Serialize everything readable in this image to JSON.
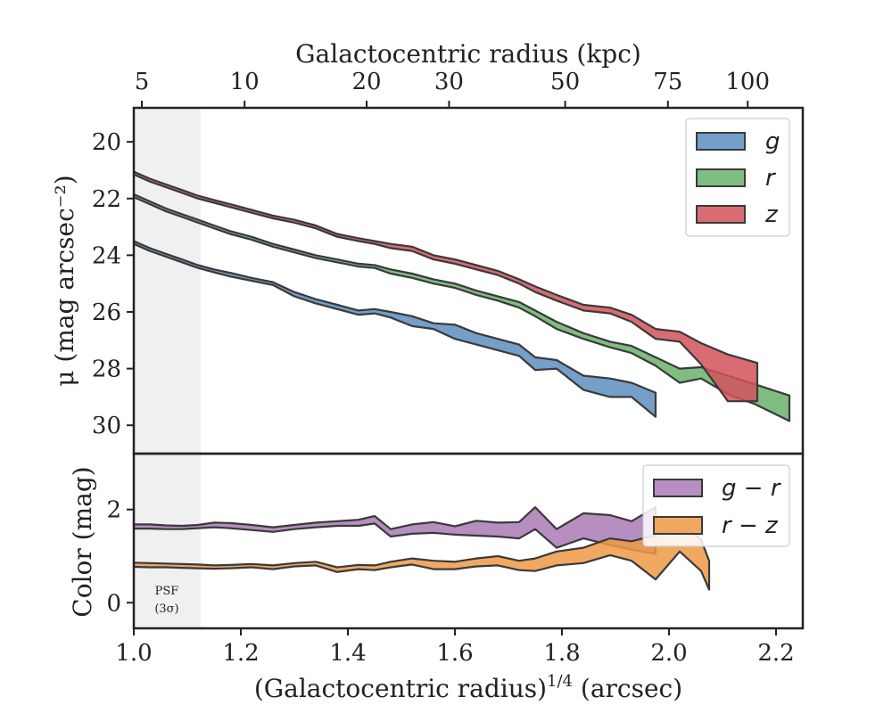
{
  "chart_data": [
    {
      "type": "area",
      "panel": "surface-brightness",
      "ylabel": "μ (mag arcsec⁻²)",
      "top_xlabel": "Galactocentric radius (kpc)",
      "xlim": [
        1.0,
        2.25
      ],
      "ylim": [
        31.0,
        18.8
      ],
      "y_inverted": true,
      "yticks": [
        20,
        22,
        24,
        26,
        28,
        30
      ],
      "top_ticks": [
        {
          "label": "5",
          "x": 1.015
        },
        {
          "label": "10",
          "x": 1.207
        },
        {
          "label": "20",
          "x": 1.435
        },
        {
          "label": "30",
          "x": 1.589
        },
        {
          "label": "50",
          "x": 1.806
        },
        {
          "label": "75",
          "x": 1.998
        },
        {
          "label": "100",
          "x": 2.147
        }
      ],
      "legend_position": "top-right",
      "series": [
        {
          "name": "g",
          "color": "#5b8ec0",
          "x": [
            1.0,
            1.03,
            1.06,
            1.09,
            1.12,
            1.15,
            1.18,
            1.22,
            1.26,
            1.3,
            1.34,
            1.38,
            1.42,
            1.45,
            1.48,
            1.52,
            1.56,
            1.6,
            1.64,
            1.68,
            1.72,
            1.75,
            1.79,
            1.84,
            1.89,
            1.93,
            1.975
          ],
          "top": [
            23.5,
            23.75,
            23.95,
            24.15,
            24.35,
            24.5,
            24.62,
            24.8,
            24.95,
            25.3,
            25.55,
            25.75,
            25.95,
            25.9,
            26.0,
            26.15,
            26.4,
            26.45,
            26.75,
            26.95,
            27.15,
            27.6,
            27.7,
            28.25,
            28.35,
            28.5,
            28.85
          ],
          "bottom": [
            23.6,
            23.85,
            24.05,
            24.25,
            24.45,
            24.6,
            24.75,
            24.9,
            25.05,
            25.45,
            25.7,
            25.9,
            26.1,
            26.05,
            26.2,
            26.5,
            26.6,
            26.95,
            27.15,
            27.35,
            27.55,
            28.05,
            28.0,
            28.75,
            29.0,
            29.0,
            29.7
          ]
        },
        {
          "name": "r",
          "color": "#6ab26a",
          "x": [
            1.0,
            1.03,
            1.06,
            1.09,
            1.12,
            1.15,
            1.18,
            1.22,
            1.26,
            1.3,
            1.34,
            1.38,
            1.42,
            1.45,
            1.48,
            1.52,
            1.56,
            1.6,
            1.64,
            1.68,
            1.72,
            1.75,
            1.79,
            1.84,
            1.89,
            1.93,
            1.975,
            2.02,
            2.06,
            2.11,
            2.16,
            2.225
          ],
          "top": [
            21.85,
            22.1,
            22.35,
            22.55,
            22.75,
            22.95,
            23.15,
            23.35,
            23.6,
            23.8,
            24.0,
            24.15,
            24.3,
            24.35,
            24.5,
            24.65,
            24.85,
            25.0,
            25.25,
            25.45,
            25.65,
            25.95,
            26.35,
            26.75,
            27.05,
            27.2,
            27.6,
            28.0,
            27.95,
            28.25,
            28.55,
            28.95
          ],
          "bottom": [
            21.95,
            22.2,
            22.45,
            22.65,
            22.85,
            23.05,
            23.25,
            23.45,
            23.7,
            23.9,
            24.1,
            24.25,
            24.4,
            24.45,
            24.65,
            24.8,
            25.0,
            25.15,
            25.4,
            25.6,
            25.85,
            26.15,
            26.6,
            26.95,
            27.25,
            27.45,
            27.9,
            28.5,
            28.35,
            28.9,
            29.25,
            29.85
          ]
        },
        {
          "name": "z",
          "color": "#d2525b",
          "x": [
            1.0,
            1.03,
            1.06,
            1.09,
            1.12,
            1.15,
            1.18,
            1.22,
            1.26,
            1.3,
            1.34,
            1.38,
            1.42,
            1.45,
            1.48,
            1.52,
            1.56,
            1.6,
            1.64,
            1.68,
            1.72,
            1.75,
            1.79,
            1.84,
            1.89,
            1.93,
            1.975,
            2.02,
            2.06,
            2.11,
            2.165
          ],
          "top": [
            21.05,
            21.3,
            21.5,
            21.7,
            21.9,
            22.05,
            22.2,
            22.4,
            22.6,
            22.75,
            22.95,
            23.25,
            23.4,
            23.5,
            23.6,
            23.7,
            24.0,
            24.15,
            24.35,
            24.55,
            24.85,
            25.1,
            25.4,
            25.75,
            25.85,
            26.1,
            26.6,
            26.7,
            27.1,
            27.5,
            27.8
          ],
          "bottom": [
            21.15,
            21.4,
            21.6,
            21.8,
            22.0,
            22.15,
            22.3,
            22.5,
            22.7,
            22.85,
            23.05,
            23.35,
            23.5,
            23.6,
            23.75,
            23.85,
            24.15,
            24.3,
            24.5,
            24.7,
            25.0,
            25.3,
            25.6,
            25.95,
            26.05,
            26.35,
            26.95,
            27.05,
            27.85,
            29.15,
            29.15
          ]
        }
      ]
    },
    {
      "type": "area",
      "panel": "color",
      "xlabel": "(Galactocentric radius)",
      "xlabel_superscript": "1/4",
      "xlabel_suffix": " (arcsec)",
      "ylabel": "Color (mag)",
      "xlim": [
        1.0,
        2.25
      ],
      "ylim": [
        -0.55,
        3.2
      ],
      "xticks": [
        1.0,
        1.2,
        1.4,
        1.6,
        1.8,
        2.0,
        2.2
      ],
      "xtick_labels": [
        "1.0",
        "1.2",
        "1.4",
        "1.6",
        "1.8",
        "2.0",
        "2.2"
      ],
      "yticks": [
        0,
        2
      ],
      "legend_position": "top-right",
      "series": [
        {
          "name": "g − r",
          "color": "#a97ab5",
          "x": [
            1.0,
            1.03,
            1.06,
            1.09,
            1.12,
            1.15,
            1.18,
            1.22,
            1.26,
            1.3,
            1.34,
            1.38,
            1.42,
            1.45,
            1.48,
            1.52,
            1.56,
            1.6,
            1.64,
            1.68,
            1.72,
            1.75,
            1.79,
            1.84,
            1.89,
            1.93,
            1.975
          ],
          "top": [
            1.68,
            1.68,
            1.66,
            1.65,
            1.67,
            1.72,
            1.71,
            1.67,
            1.62,
            1.67,
            1.72,
            1.75,
            1.78,
            1.86,
            1.58,
            1.68,
            1.73,
            1.64,
            1.76,
            1.72,
            1.73,
            2.05,
            1.58,
            1.92,
            1.88,
            1.75,
            2.05
          ],
          "bottom": [
            1.59,
            1.59,
            1.58,
            1.58,
            1.6,
            1.62,
            1.6,
            1.56,
            1.52,
            1.58,
            1.62,
            1.65,
            1.65,
            1.7,
            1.42,
            1.48,
            1.5,
            1.46,
            1.44,
            1.42,
            1.38,
            1.58,
            1.18,
            1.38,
            1.24,
            1.14,
            1.05
          ]
        },
        {
          "name": "r − z",
          "color": "#ee9a45",
          "x": [
            1.0,
            1.03,
            1.06,
            1.09,
            1.12,
            1.15,
            1.18,
            1.22,
            1.26,
            1.3,
            1.34,
            1.38,
            1.42,
            1.45,
            1.48,
            1.52,
            1.56,
            1.6,
            1.64,
            1.68,
            1.72,
            1.75,
            1.79,
            1.84,
            1.89,
            1.93,
            1.975,
            2.02,
            2.06,
            2.075
          ],
          "top": [
            0.86,
            0.85,
            0.84,
            0.83,
            0.82,
            0.8,
            0.81,
            0.83,
            0.8,
            0.85,
            0.88,
            0.76,
            0.81,
            0.8,
            0.88,
            0.95,
            0.9,
            0.88,
            0.95,
            1.0,
            0.9,
            0.95,
            1.1,
            1.18,
            1.38,
            1.32,
            1.45,
            1.75,
            1.35,
            0.9
          ],
          "bottom": [
            0.77,
            0.76,
            0.76,
            0.75,
            0.74,
            0.73,
            0.74,
            0.76,
            0.72,
            0.78,
            0.8,
            0.66,
            0.72,
            0.7,
            0.76,
            0.82,
            0.72,
            0.72,
            0.78,
            0.8,
            0.7,
            0.68,
            0.8,
            0.85,
            1.02,
            0.9,
            0.5,
            1.1,
            0.68,
            0.28
          ]
        }
      ],
      "annotation": {
        "line1": "PSF",
        "line2": "(3σ)"
      }
    }
  ],
  "psf_region_xmax": 1.125,
  "styles": {
    "axis_color": "#222222",
    "psf_shade": "#f0f0f0",
    "outline": "#3a3a3a",
    "alpha": 0.85
  }
}
